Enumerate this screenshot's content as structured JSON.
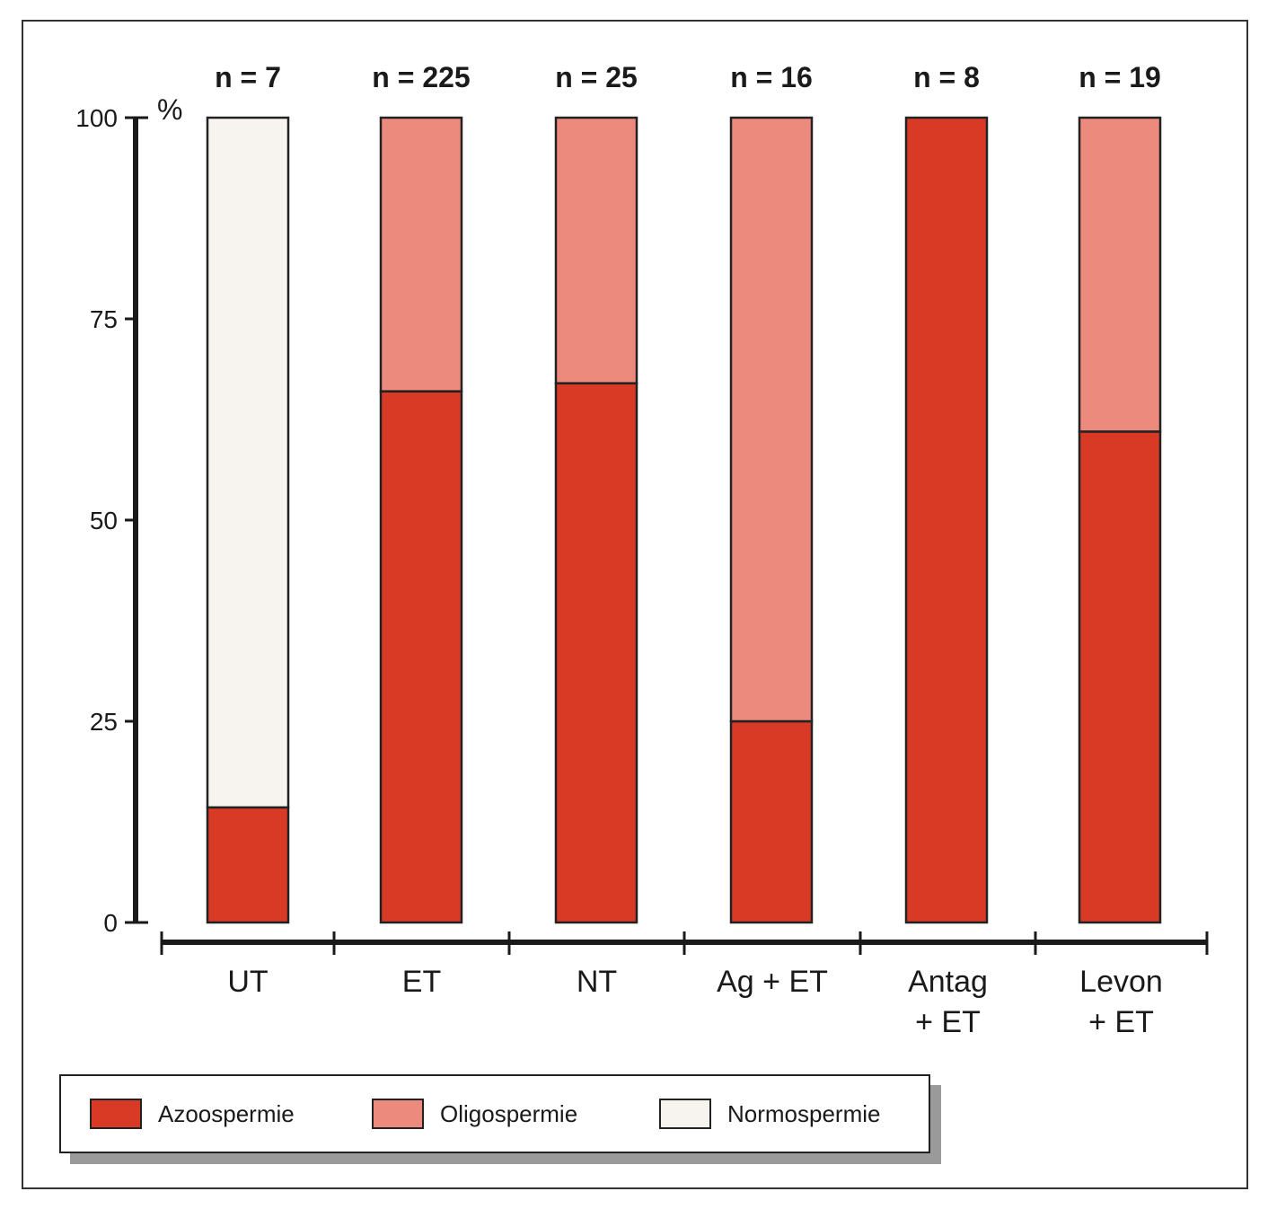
{
  "chart_data": {
    "type": "bar",
    "stacked": true,
    "title": "",
    "xlabel": "",
    "ylabel": "%",
    "ylim": [
      0,
      100
    ],
    "yticks": [
      0,
      25,
      50,
      75,
      100
    ],
    "grid": false,
    "legend_position": "bottom-left",
    "categories": [
      {
        "label_lines": [
          "UT"
        ],
        "n_label": "n = 7"
      },
      {
        "label_lines": [
          "ET"
        ],
        "n_label": "n = 225"
      },
      {
        "label_lines": [
          "NT"
        ],
        "n_label": "n = 25"
      },
      {
        "label_lines": [
          "Ag + ET"
        ],
        "n_label": "n = 16"
      },
      {
        "label_lines": [
          "Antag",
          "+ ET"
        ],
        "n_label": "n = 8"
      },
      {
        "label_lines": [
          "Levon",
          "+ ET"
        ],
        "n_label": "n = 19"
      }
    ],
    "series": [
      {
        "name": "Azoospermie",
        "color": "#d83a26",
        "values": [
          14.3,
          66,
          67,
          25,
          100,
          61
        ]
      },
      {
        "name": "Oligospermie",
        "color": "#ec8a7e",
        "values": [
          0,
          34,
          33,
          75,
          0,
          39
        ]
      },
      {
        "name": "Normospermie",
        "color": "#f7f3ef",
        "values": [
          85.7,
          0,
          0,
          0,
          0,
          0
        ]
      }
    ]
  }
}
